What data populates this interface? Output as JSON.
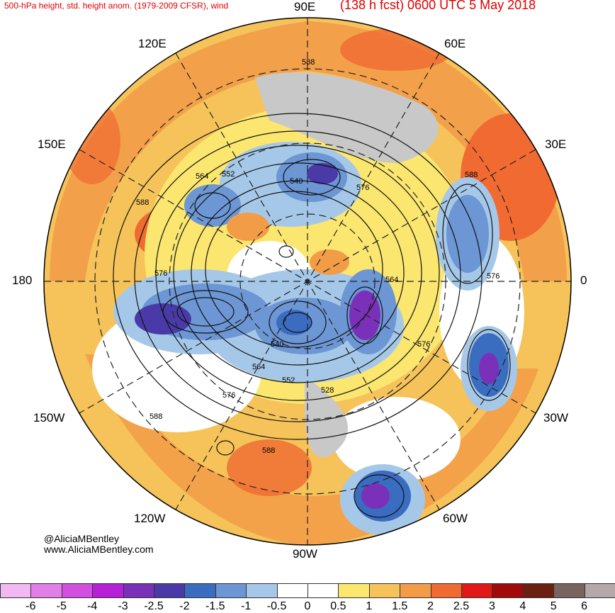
{
  "header": {
    "title_left": "500-hPa height, std. height anom. (1979-2009 CFSR), wind",
    "title_right": "(138 h fcst) 0600 UTC 5 May 2018"
  },
  "longitude_labels": {
    "top": "90E",
    "top_left": "120E",
    "top_right": "60E",
    "upper_left": "150E",
    "upper_right": "30E",
    "left": "180",
    "right": "0",
    "lower_left": "150W",
    "lower_right": "30W",
    "bottom_left": "120W",
    "bottom_right": "60W",
    "bottom": "90W"
  },
  "contour_labels": [
    "588",
    "564",
    "552",
    "540",
    "576",
    "588",
    "588",
    "576",
    "576",
    "564",
    "540",
    "576",
    "564",
    "552",
    "528",
    "576",
    "588",
    "588"
  ],
  "credits": {
    "handle": "@AliciaMBentley",
    "website": "www.AliciaMBentley.com"
  },
  "colorbar": {
    "ticks": [
      "-6",
      "-5",
      "-4",
      "-3",
      "-2.5",
      "-2",
      "-1.5",
      "-1",
      "-0.5",
      "0",
      "0.5",
      "1",
      "1.5",
      "2",
      "2.5",
      "3",
      "4",
      "5",
      "6"
    ],
    "colors": [
      "#f2b8f2",
      "#e27ee8",
      "#d24fe0",
      "#b51fd6",
      "#7a30b8",
      "#4a3aa8",
      "#3a6cc0",
      "#6c96d4",
      "#a6c8e8",
      "#ffffff",
      "#ffffff",
      "#fbe670",
      "#f5c35a",
      "#f39c48",
      "#f06a32",
      "#e01818",
      "#a00a0a",
      "#6b2010",
      "#7a6460",
      "#b4a8a8"
    ]
  }
}
